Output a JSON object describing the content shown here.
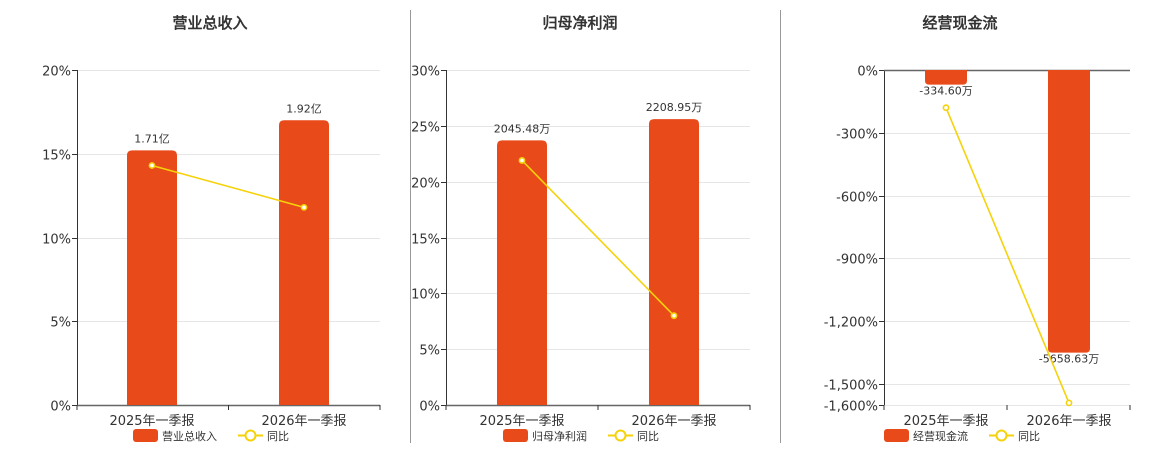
{
  "colors": {
    "bar": "#E84A19",
    "line": "#F5D20A",
    "grid": "#E6E6E6",
    "axis": "#333333",
    "divider": "#999999"
  },
  "chart_data": [
    {
      "type": "bar",
      "title": "营业总收入",
      "categories": [
        "2025年一季报",
        "2026年一季报"
      ],
      "y_ticks": [
        "0%",
        "5%",
        "10%",
        "15%",
        "20%"
      ],
      "ylim": [
        0,
        20
      ],
      "series": [
        {
          "name": "营业总收入",
          "type": "bar",
          "values": [
            15.2,
            17.0
          ],
          "labels": [
            "1.71亿",
            "1.92亿"
          ]
        },
        {
          "name": "同比",
          "type": "line",
          "values": [
            14.3,
            11.8
          ]
        }
      ],
      "grid": true,
      "legend": "bottom-center"
    },
    {
      "type": "bar",
      "title": "归母净利润",
      "categories": [
        "2025年一季报",
        "2026年一季报"
      ],
      "y_ticks": [
        "0%",
        "5%",
        "10%",
        "15%",
        "20%",
        "25%",
        "30%"
      ],
      "ylim": [
        0,
        30
      ],
      "series": [
        {
          "name": "归母净利润",
          "type": "bar",
          "values": [
            23.7,
            25.6
          ],
          "labels": [
            "2045.48万",
            "2208.95万"
          ]
        },
        {
          "name": "同比",
          "type": "line",
          "values": [
            21.9,
            8.0
          ]
        }
      ],
      "grid": true,
      "legend": "bottom-center"
    },
    {
      "type": "bar",
      "title": "经营现金流",
      "categories": [
        "2025年一季报",
        "2026年一季报"
      ],
      "y_ticks": [
        "0%",
        "-300%",
        "-600%",
        "-900%",
        "-1,200%",
        "-1,500%",
        "-1,600%"
      ],
      "ylim": [
        -1600,
        0
      ],
      "series": [
        {
          "name": "经营现金流",
          "type": "bar",
          "values": [
            -70,
            -1350
          ],
          "labels": [
            "-334.60万",
            "-5658.63万"
          ]
        },
        {
          "name": "同比",
          "type": "line",
          "values": [
            -180,
            -1590
          ]
        }
      ],
      "grid": true,
      "legend": "bottom-center"
    }
  ]
}
